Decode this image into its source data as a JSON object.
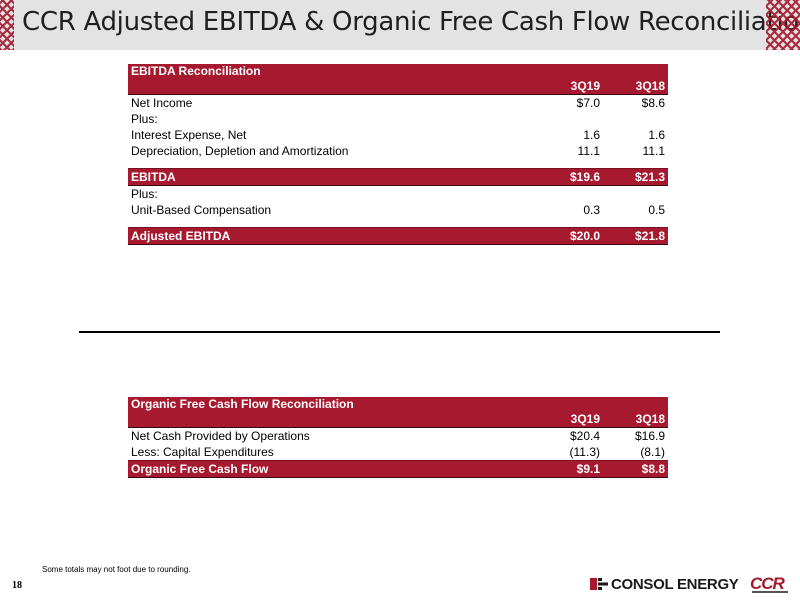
{
  "slide": {
    "title": "CCR Adjusted EBITDA & Organic Free Cash Flow Reconciliations",
    "page_number": "18",
    "footnote": "Some totals may not foot due to rounding."
  },
  "ebitda": {
    "title": "EBITDA Reconciliation",
    "col1": "3Q19",
    "col2": "3Q18",
    "rows": [
      {
        "label": "Net Income",
        "v1": "$7.0",
        "v2": "$8.6"
      },
      {
        "label": "Plus:",
        "v1": "",
        "v2": ""
      },
      {
        "label": "Interest Expense, Net",
        "v1": "1.6",
        "v2": "1.6"
      },
      {
        "label": "Depreciation, Depletion and Amortization",
        "v1": "11.1",
        "v2": "11.1"
      }
    ],
    "subtotal": {
      "label": "EBITDA",
      "v1": "$19.6",
      "v2": "$21.3"
    },
    "rows2": [
      {
        "label": "Plus:",
        "v1": "",
        "v2": ""
      },
      {
        "label": "Unit-Based Compensation",
        "v1": "0.3",
        "v2": "0.5"
      }
    ],
    "total": {
      "label": "Adjusted EBITDA",
      "v1": "$20.0",
      "v2": "$21.8"
    }
  },
  "ofcf": {
    "title": "Organic Free Cash Flow Reconciliation",
    "col1": "3Q19",
    "col2": "3Q18",
    "rows": [
      {
        "label": "Net Cash Provided by Operations",
        "v1": "$20.4",
        "v2": "$16.9"
      },
      {
        "label": "Less: Capital Expenditures",
        "v1": "(11.3)",
        "v2": "(8.1)"
      }
    ],
    "total": {
      "label": "Organic Free Cash Flow",
      "v1": "$9.1",
      "v2": "$8.8"
    }
  },
  "logos": {
    "consol": "CONSOL ENERGY",
    "ccr": "CCR"
  },
  "colors": {
    "accent": "#a6192e",
    "title_bar": "#e3e3e3"
  }
}
